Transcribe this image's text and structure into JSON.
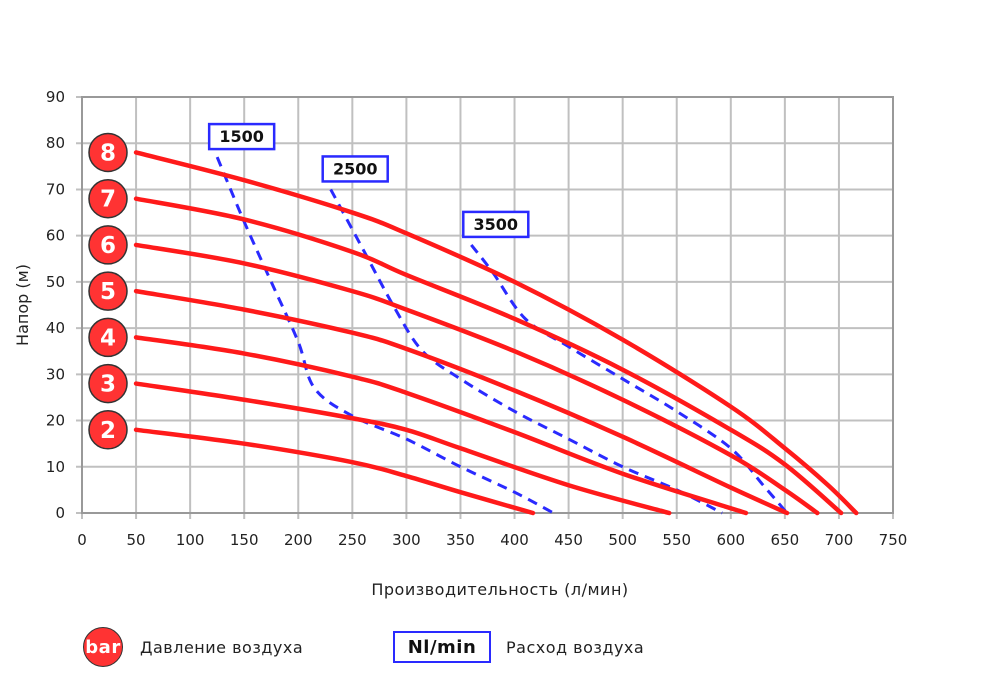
{
  "chart_data": {
    "type": "line",
    "xlabel": "Производительность (л/мин)",
    "ylabel": "Напор (м)",
    "xlim": [
      0,
      750
    ],
    "ylim": [
      0,
      90
    ],
    "xticks": [
      0,
      50,
      100,
      150,
      200,
      250,
      300,
      350,
      400,
      450,
      500,
      550,
      600,
      650,
      700,
      750
    ],
    "yticks": [
      0,
      10,
      20,
      30,
      40,
      50,
      60,
      70,
      80,
      90
    ],
    "grid": true,
    "series": [
      {
        "name": "2",
        "kind": "pressure_bar",
        "points": [
          [
            50,
            18
          ],
          [
            150,
            15
          ],
          [
            250,
            11
          ],
          [
            300,
            8
          ],
          [
            350,
            4.5
          ],
          [
            417,
            0
          ]
        ]
      },
      {
        "name": "3",
        "kind": "pressure_bar",
        "points": [
          [
            50,
            28
          ],
          [
            150,
            24.5
          ],
          [
            250,
            20.5
          ],
          [
            300,
            18
          ],
          [
            350,
            14
          ],
          [
            450,
            6
          ],
          [
            543,
            0
          ]
        ]
      },
      {
        "name": "4",
        "kind": "pressure_bar",
        "points": [
          [
            50,
            38
          ],
          [
            150,
            34.5
          ],
          [
            250,
            29.5
          ],
          [
            300,
            26
          ],
          [
            400,
            17.5
          ],
          [
            500,
            8.5
          ],
          [
            614,
            0
          ]
        ]
      },
      {
        "name": "5",
        "kind": "pressure_bar",
        "points": [
          [
            50,
            48
          ],
          [
            150,
            44
          ],
          [
            250,
            39
          ],
          [
            300,
            35.5
          ],
          [
            400,
            26.5
          ],
          [
            500,
            16.5
          ],
          [
            600,
            5.5
          ],
          [
            652,
            0
          ]
        ]
      },
      {
        "name": "6",
        "kind": "pressure_bar",
        "points": [
          [
            50,
            58
          ],
          [
            150,
            54
          ],
          [
            250,
            48
          ],
          [
            300,
            44
          ],
          [
            400,
            35
          ],
          [
            500,
            24.5
          ],
          [
            600,
            12.5
          ],
          [
            650,
            5
          ],
          [
            680,
            0
          ]
        ]
      },
      {
        "name": "7",
        "kind": "pressure_bar",
        "points": [
          [
            50,
            68
          ],
          [
            150,
            63.5
          ],
          [
            250,
            56.5
          ],
          [
            300,
            51.5
          ],
          [
            400,
            42
          ],
          [
            500,
            31
          ],
          [
            600,
            18
          ],
          [
            650,
            10.5
          ],
          [
            702,
            0
          ]
        ]
      },
      {
        "name": "8",
        "kind": "pressure_bar",
        "points": [
          [
            50,
            78
          ],
          [
            150,
            72
          ],
          [
            250,
            65
          ],
          [
            300,
            60.5
          ],
          [
            400,
            50
          ],
          [
            500,
            37.5
          ],
          [
            600,
            23
          ],
          [
            650,
            14
          ],
          [
            690,
            6
          ],
          [
            716,
            0
          ]
        ]
      },
      {
        "name": "1500",
        "kind": "air_flow",
        "points": [
          [
            125,
            77
          ],
          [
            150,
            63
          ],
          [
            175,
            50
          ],
          [
            200,
            37
          ],
          [
            215,
            27
          ],
          [
            250,
            21
          ],
          [
            300,
            16
          ],
          [
            350,
            10
          ],
          [
            400,
            4.5
          ],
          [
            436,
            0
          ]
        ]
      },
      {
        "name": "2500",
        "kind": "air_flow",
        "points": [
          [
            230,
            70
          ],
          [
            260,
            57
          ],
          [
            290,
            44
          ],
          [
            315,
            35
          ],
          [
            350,
            29
          ],
          [
            400,
            22
          ],
          [
            450,
            16
          ],
          [
            500,
            10
          ],
          [
            550,
            5
          ],
          [
            592,
            0
          ]
        ]
      },
      {
        "name": "3500",
        "kind": "air_flow",
        "points": [
          [
            360,
            58
          ],
          [
            380,
            52
          ],
          [
            410,
            42
          ],
          [
            450,
            36
          ],
          [
            500,
            29
          ],
          [
            550,
            22
          ],
          [
            600,
            14
          ],
          [
            630,
            6
          ],
          [
            652,
            0
          ]
        ]
      }
    ],
    "colors": {
      "pressure": "#ff1a1a",
      "air_flow": "#2a2aff",
      "grid": "#c0c0c0",
      "badge": "#ff3333"
    }
  },
  "legend": {
    "bar_badge": "bar",
    "bar_label": "Давление воздуха",
    "nl_badge": "Nl/min",
    "nl_label": "Расход воздуха"
  }
}
